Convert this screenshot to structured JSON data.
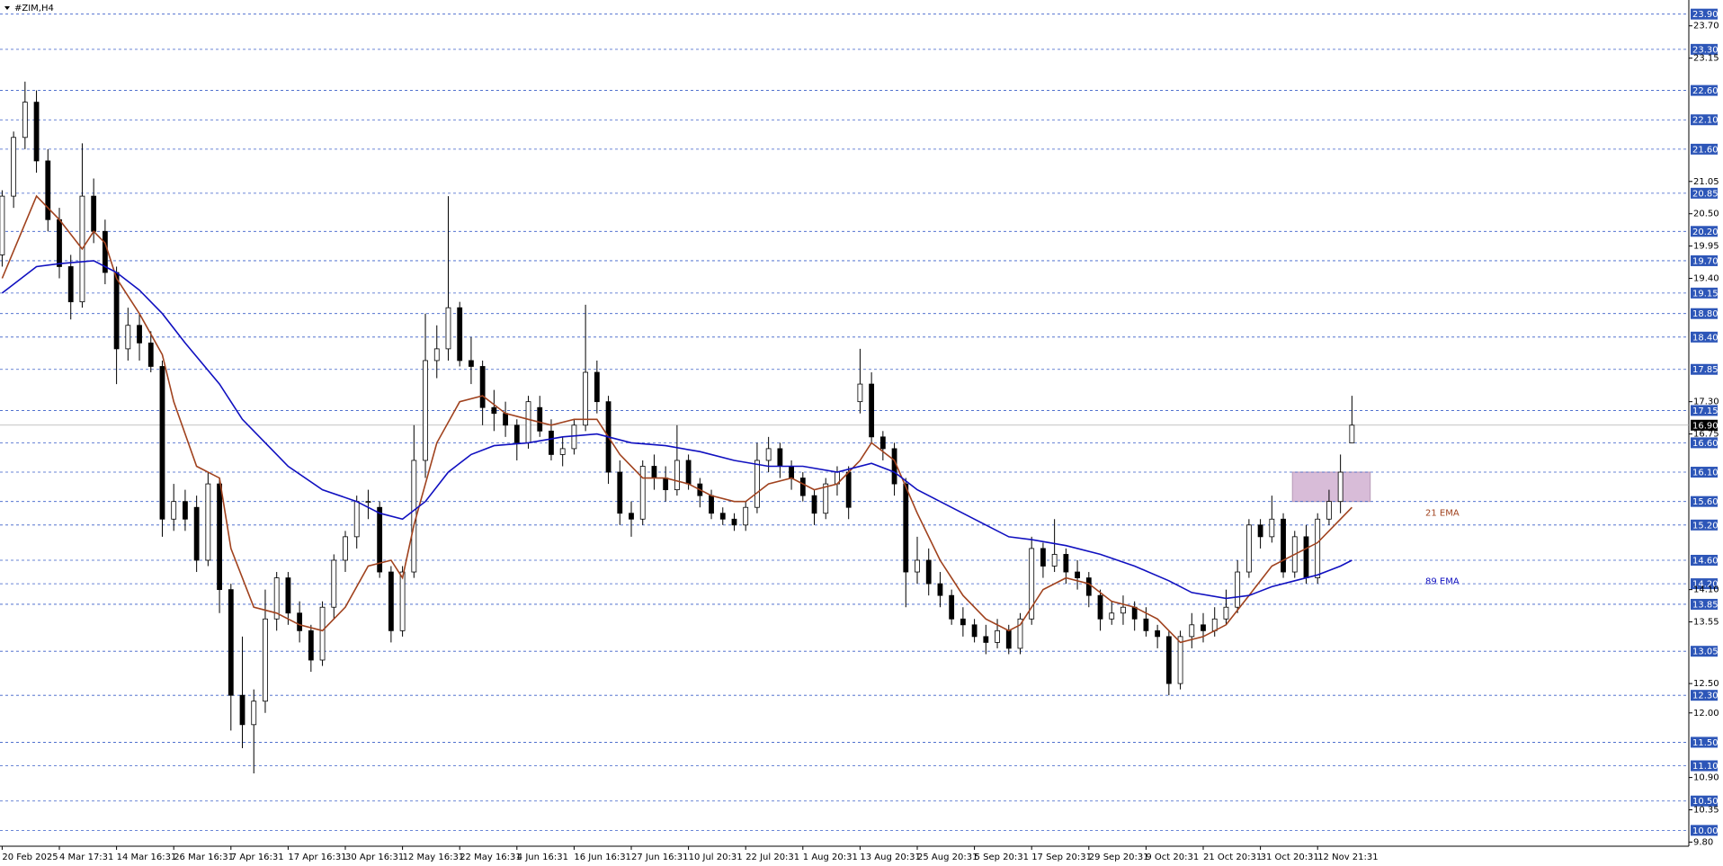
{
  "chart_data": {
    "type": "candlestick",
    "title": "#ZIM,H4",
    "ylim": [
      9.73,
      24.14
    ],
    "levels": [
      {
        "value": 23.9,
        "label": "23.90"
      },
      {
        "value": 23.3,
        "label": "23.30"
      },
      {
        "value": 22.6,
        "label": "22.60"
      },
      {
        "value": 22.1,
        "label": "22.10"
      },
      {
        "value": 21.6,
        "label": "21.60"
      },
      20.85,
      {
        "value": 20.2,
        "label": "20.20"
      },
      {
        "value": 19.7,
        "label": "19.70"
      },
      19.15,
      {
        "value": 18.8,
        "label": "18.80"
      },
      {
        "value": 18.4,
        "label": "18.40"
      },
      17.85,
      17.15,
      {
        "value": 16.6,
        "label": "16.60"
      },
      {
        "value": 16.1,
        "label": "16.10"
      },
      {
        "value": 15.6,
        "label": "15.60"
      },
      {
        "value": 15.2,
        "label": "15.20"
      },
      {
        "value": 14.6,
        "label": "14.60"
      },
      {
        "value": 14.2,
        "label": "14.20"
      },
      13.85,
      13.05,
      {
        "value": 12.3,
        "label": "12.30"
      },
      {
        "value": 11.5,
        "label": "11.50"
      },
      {
        "value": 11.1,
        "label": "11.10"
      },
      {
        "value": 10.5,
        "label": "10.50"
      },
      {
        "value": 10,
        "label": "10.00"
      }
    ],
    "yticks": [
      {
        "value": 23.7,
        "label": "23.70"
      },
      23.15,
      21.05,
      {
        "value": 20.5,
        "label": "20.50"
      },
      19.95,
      {
        "value": 19.4,
        "label": "19.40"
      },
      {
        "value": 17.3,
        "label": "17.30"
      },
      16.75,
      {
        "value": 14.1,
        "label": "14.10"
      },
      13.55,
      {
        "value": 12.5,
        "label": "12.50"
      },
      {
        "value": 12,
        "label": "12.00"
      },
      {
        "value": 10.9,
        "label": "10.90"
      },
      10.35,
      {
        "value": 9.8,
        "label": "9.80"
      }
    ],
    "last_price": {
      "value": 16.9,
      "label": "16.90"
    },
    "zone": [
      15.6,
      16.1
    ],
    "xticks": [
      {
        "value": 0,
        "label": "20 Feb 2025"
      },
      {
        "value": 5,
        "label": "4 Mar 17:31"
      },
      {
        "value": 10,
        "label": "14 Mar 16:31"
      },
      {
        "value": 15,
        "label": "26 Mar 16:31"
      },
      {
        "value": 20,
        "label": "7 Apr 16:31"
      },
      {
        "value": 25,
        "label": "17 Apr 16:31"
      },
      {
        "value": 30,
        "label": "30 Apr 16:31"
      },
      {
        "value": 35,
        "label": "12 May 16:31"
      },
      {
        "value": 40,
        "label": "22 May 16:31"
      },
      {
        "value": 45,
        "label": "4 Jun 16:31"
      },
      {
        "value": 50,
        "label": "16 Jun 16:31"
      },
      {
        "value": 55,
        "label": "27 Jun 16:31"
      },
      {
        "value": 60,
        "label": "10 Jul 20:31"
      },
      {
        "value": 65,
        "label": "22 Jul 20:31"
      },
      {
        "value": 70,
        "label": "1 Aug 20:31"
      },
      {
        "value": 75,
        "label": "13 Aug 20:31"
      },
      {
        "value": 80,
        "label": "25 Aug 20:31"
      },
      {
        "value": 85,
        "label": "5 Sep 20:31"
      },
      {
        "value": 90,
        "label": "17 Sep 20:31"
      },
      {
        "value": 95,
        "label": "29 Sep 20:31"
      },
      {
        "value": 100,
        "label": "9 Oct 20:31"
      },
      {
        "value": 105,
        "label": "21 Oct 20:31"
      },
      {
        "value": 110,
        "label": "31 Oct 20:31"
      },
      {
        "value": 115,
        "label": "12 Nov 21:31"
      }
    ],
    "candles": [
      [
        19.8,
        20.9,
        19.6,
        20.8
      ],
      [
        20.8,
        21.9,
        20.6,
        21.8
      ],
      [
        21.8,
        22.75,
        21.6,
        22.4
      ],
      [
        22.4,
        22.6,
        21.2,
        21.4
      ],
      [
        21.4,
        21.6,
        20.2,
        20.4
      ],
      [
        20.4,
        20.6,
        19.4,
        19.6
      ],
      [
        19.6,
        19.8,
        18.7,
        19.0
      ],
      [
        19.0,
        21.7,
        18.9,
        20.8
      ],
      [
        20.8,
        21.1,
        20.0,
        20.2
      ],
      [
        20.2,
        20.4,
        19.3,
        19.5
      ],
      [
        19.5,
        19.6,
        17.6,
        18.2
      ],
      [
        18.2,
        18.9,
        18.0,
        18.6
      ],
      [
        18.6,
        18.8,
        18.0,
        18.3
      ],
      [
        18.3,
        18.5,
        17.8,
        17.9
      ],
      [
        17.9,
        18.0,
        15.0,
        15.3
      ],
      [
        15.3,
        15.9,
        15.1,
        15.6
      ],
      [
        15.6,
        15.8,
        15.1,
        15.3
      ],
      [
        15.5,
        15.7,
        14.4,
        14.6
      ],
      [
        14.6,
        16.1,
        14.5,
        15.9
      ],
      [
        15.9,
        16.0,
        13.7,
        14.1
      ],
      [
        14.1,
        14.2,
        11.7,
        12.3
      ],
      [
        12.3,
        13.3,
        11.4,
        11.8
      ],
      [
        11.8,
        12.4,
        10.97,
        12.2
      ],
      [
        12.2,
        14.1,
        12.0,
        13.6
      ],
      [
        13.6,
        14.4,
        13.4,
        14.3
      ],
      [
        14.3,
        14.4,
        13.5,
        13.7
      ],
      [
        13.7,
        13.9,
        13.2,
        13.4
      ],
      [
        13.4,
        13.5,
        12.7,
        12.9
      ],
      [
        12.9,
        13.9,
        12.8,
        13.8
      ],
      [
        13.8,
        14.7,
        13.6,
        14.6
      ],
      [
        14.6,
        15.1,
        14.4,
        15.0
      ],
      [
        15.0,
        15.7,
        14.8,
        15.6
      ],
      [
        15.6,
        15.8,
        15.3,
        15.6
      ],
      [
        15.5,
        15.6,
        14.3,
        14.4
      ],
      [
        14.4,
        14.5,
        13.2,
        13.4
      ],
      [
        13.4,
        14.5,
        13.3,
        14.4
      ],
      [
        14.4,
        16.9,
        14.3,
        16.3
      ],
      [
        16.3,
        18.8,
        16.0,
        18.0
      ],
      [
        18.0,
        18.6,
        17.7,
        18.2
      ],
      [
        18.2,
        20.8,
        18.0,
        18.9
      ],
      [
        18.9,
        19.0,
        17.9,
        18.0
      ],
      [
        18.0,
        18.4,
        17.6,
        17.9
      ],
      [
        17.9,
        18.0,
        16.9,
        17.2
      ],
      [
        17.2,
        17.5,
        16.8,
        17.1
      ],
      [
        17.1,
        17.3,
        16.7,
        16.9
      ],
      [
        16.9,
        17.0,
        16.3,
        16.6
      ],
      [
        16.6,
        17.4,
        16.5,
        17.3
      ],
      [
        17.2,
        17.4,
        16.7,
        16.8
      ],
      [
        16.8,
        17.0,
        16.3,
        16.4
      ],
      [
        16.4,
        16.7,
        16.2,
        16.5
      ],
      [
        16.5,
        17.0,
        16.4,
        16.9
      ],
      [
        16.9,
        18.95,
        16.8,
        17.8
      ],
      [
        17.8,
        18.0,
        17.1,
        17.3
      ],
      [
        17.3,
        17.4,
        15.9,
        16.1
      ],
      [
        16.1,
        16.3,
        15.2,
        15.4
      ],
      [
        15.4,
        15.6,
        15.0,
        15.3
      ],
      [
        15.3,
        16.3,
        15.2,
        16.2
      ],
      [
        16.2,
        16.4,
        15.8,
        16.0
      ],
      [
        16.0,
        16.2,
        15.6,
        15.8
      ],
      [
        15.8,
        16.9,
        15.7,
        16.3
      ],
      [
        16.3,
        16.4,
        15.8,
        15.9
      ],
      [
        15.9,
        16.0,
        15.5,
        15.7
      ],
      [
        15.7,
        15.8,
        15.3,
        15.4
      ],
      [
        15.4,
        15.5,
        15.2,
        15.3
      ],
      [
        15.3,
        15.4,
        15.1,
        15.2
      ],
      [
        15.2,
        15.6,
        15.1,
        15.5
      ],
      [
        15.5,
        16.6,
        15.4,
        16.3
      ],
      [
        16.3,
        16.7,
        16.1,
        16.5
      ],
      [
        16.5,
        16.6,
        16.0,
        16.2
      ],
      [
        16.2,
        16.3,
        15.8,
        16.0
      ],
      [
        16.0,
        16.1,
        15.6,
        15.7
      ],
      [
        15.7,
        15.8,
        15.2,
        15.4
      ],
      [
        15.4,
        16.0,
        15.3,
        15.9
      ],
      [
        15.9,
        16.2,
        15.7,
        16.1
      ],
      [
        16.1,
        16.2,
        15.3,
        15.5
      ],
      [
        17.3,
        18.2,
        17.1,
        17.6
      ],
      [
        17.6,
        17.8,
        16.6,
        16.7
      ],
      [
        16.7,
        16.8,
        16.3,
        16.5
      ],
      [
        16.5,
        16.6,
        15.7,
        15.9
      ],
      [
        15.9,
        16.0,
        13.8,
        14.4
      ],
      [
        14.4,
        15.0,
        14.2,
        14.6
      ],
      [
        14.6,
        14.8,
        14.0,
        14.2
      ],
      [
        14.2,
        14.4,
        13.8,
        14.0
      ],
      [
        14.0,
        14.1,
        13.5,
        13.6
      ],
      [
        13.6,
        13.8,
        13.3,
        13.5
      ],
      [
        13.5,
        13.6,
        13.2,
        13.3
      ],
      [
        13.3,
        13.5,
        13.0,
        13.2
      ],
      [
        13.2,
        13.6,
        13.1,
        13.4
      ],
      [
        13.4,
        13.5,
        13.0,
        13.1
      ],
      [
        13.1,
        13.7,
        13.0,
        13.6
      ],
      [
        13.6,
        15.0,
        13.5,
        14.8
      ],
      [
        14.8,
        14.9,
        14.3,
        14.5
      ],
      [
        14.5,
        15.3,
        14.4,
        14.7
      ],
      [
        14.7,
        14.8,
        14.2,
        14.4
      ],
      [
        14.4,
        14.6,
        14.1,
        14.3
      ],
      [
        14.3,
        14.4,
        13.8,
        14.0
      ],
      [
        14.0,
        14.1,
        13.4,
        13.6
      ],
      [
        13.6,
        13.9,
        13.5,
        13.7
      ],
      [
        13.7,
        14.0,
        13.5,
        13.8
      ],
      [
        13.8,
        13.9,
        13.4,
        13.6
      ],
      [
        13.6,
        13.8,
        13.3,
        13.4
      ],
      [
        13.4,
        13.5,
        13.1,
        13.3
      ],
      [
        13.3,
        13.4,
        12.3,
        12.5
      ],
      [
        12.5,
        13.4,
        12.4,
        13.3
      ],
      [
        13.3,
        13.7,
        13.1,
        13.5
      ],
      [
        13.5,
        13.7,
        13.2,
        13.4
      ],
      [
        13.4,
        13.8,
        13.3,
        13.6
      ],
      [
        13.6,
        14.1,
        13.5,
        13.8
      ],
      [
        13.8,
        14.6,
        13.7,
        14.4
      ],
      [
        14.4,
        15.3,
        14.3,
        15.2
      ],
      [
        15.2,
        15.3,
        14.8,
        15.0
      ],
      [
        15.0,
        15.7,
        14.9,
        15.3
      ],
      [
        15.3,
        15.4,
        14.3,
        14.4
      ],
      [
        14.4,
        15.1,
        14.3,
        15.0
      ],
      [
        15.0,
        15.2,
        14.2,
        14.3
      ],
      [
        14.3,
        15.4,
        14.2,
        15.3
      ],
      [
        15.3,
        15.8,
        15.2,
        15.6
      ],
      [
        15.6,
        16.4,
        15.4,
        16.1
      ],
      [
        16.6,
        17.4,
        16.6,
        16.9
      ]
    ],
    "series": [
      {
        "name": "21 EMA",
        "color": "#a0421e",
        "x": [
          0,
          3,
          5,
          7,
          8,
          9,
          10,
          12,
          14,
          15,
          17,
          19,
          20,
          22,
          24,
          26,
          28,
          30,
          32,
          34,
          35,
          36,
          38,
          40,
          42,
          44,
          46,
          48,
          50,
          52,
          54,
          56,
          58,
          60,
          62,
          64,
          65,
          67,
          69,
          71,
          73,
          75,
          76,
          78,
          80,
          82,
          84,
          86,
          88,
          89,
          91,
          93,
          95,
          97,
          99,
          101,
          103,
          105,
          107,
          109,
          111,
          113,
          115,
          117,
          118
        ],
        "values": [
          19.4,
          20.8,
          20.4,
          19.9,
          20.2,
          20.0,
          19.4,
          18.8,
          18.1,
          17.3,
          16.2,
          16.0,
          14.8,
          13.8,
          13.7,
          13.5,
          13.4,
          13.8,
          14.5,
          14.6,
          14.3,
          15.2,
          16.6,
          17.3,
          17.4,
          17.1,
          17.0,
          16.9,
          17.0,
          17.0,
          16.4,
          16.0,
          16.0,
          15.9,
          15.7,
          15.6,
          15.6,
          15.9,
          16.0,
          15.8,
          15.9,
          16.3,
          16.6,
          16.3,
          15.4,
          14.6,
          14.0,
          13.6,
          13.4,
          13.5,
          14.1,
          14.3,
          14.2,
          13.9,
          13.8,
          13.6,
          13.2,
          13.3,
          13.5,
          14.0,
          14.5,
          14.7,
          14.9,
          15.3,
          15.5
        ]
      },
      {
        "name": "89 EMA",
        "color": "#1010c0",
        "x": [
          0,
          3,
          5,
          8,
          10,
          12,
          14,
          16,
          19,
          21,
          23,
          25,
          28,
          31,
          33,
          35,
          37,
          39,
          41,
          43,
          46,
          49,
          52,
          55,
          58,
          61,
          64,
          67,
          70,
          73,
          76,
          78,
          80,
          82,
          85,
          88,
          90,
          93,
          96,
          99,
          102,
          104,
          107,
          109,
          111,
          113,
          115,
          117,
          118
        ],
        "values": [
          19.15,
          19.6,
          19.65,
          19.7,
          19.5,
          19.2,
          18.8,
          18.3,
          17.6,
          17.0,
          16.6,
          16.2,
          15.8,
          15.6,
          15.4,
          15.3,
          15.6,
          16.1,
          16.4,
          16.55,
          16.6,
          16.7,
          16.75,
          16.6,
          16.55,
          16.45,
          16.3,
          16.2,
          16.2,
          16.1,
          16.25,
          16.1,
          15.8,
          15.6,
          15.3,
          15.0,
          14.95,
          14.85,
          14.7,
          14.5,
          14.25,
          14.05,
          13.95,
          14.0,
          14.15,
          14.25,
          14.35,
          14.5,
          14.6
        ]
      }
    ]
  }
}
